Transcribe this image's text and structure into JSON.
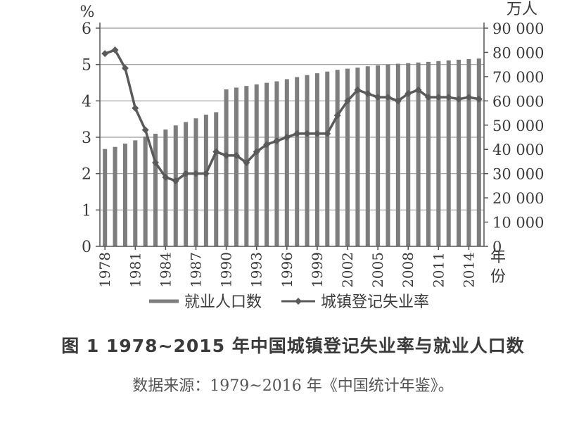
{
  "figure": {
    "title": "图 1 1978~2015 年中国城镇登记失业率与就业人口数",
    "source": "数据来源：1979~2016 年《中国统计年鉴》。"
  },
  "chart_data": {
    "type": "bar+line",
    "x": [
      1978,
      1979,
      1980,
      1981,
      1982,
      1983,
      1984,
      1985,
      1986,
      1987,
      1988,
      1989,
      1990,
      1991,
      1992,
      1993,
      1994,
      1995,
      1996,
      1997,
      1998,
      1999,
      2000,
      2001,
      2002,
      2003,
      2004,
      2005,
      2006,
      2007,
      2008,
      2009,
      2010,
      2011,
      2012,
      2013,
      2014,
      2015
    ],
    "x_tick_labels": [
      "1978",
      "1981",
      "1984",
      "1987",
      "1990",
      "1993",
      "1996",
      "1999",
      "2002",
      "2005",
      "2008",
      "2011",
      "2014"
    ],
    "x_tick_values": [
      1978,
      1981,
      1984,
      1987,
      1990,
      1993,
      1996,
      1999,
      2002,
      2005,
      2008,
      2011,
      2014
    ],
    "xlabel": "年份",
    "left_axis": {
      "unit": "%",
      "ylim": [
        0,
        6
      ],
      "ticks": [
        "0",
        "1",
        "2",
        "3",
        "4",
        "5",
        "6"
      ]
    },
    "right_axis": {
      "unit": "万人",
      "ylim": [
        0,
        90000
      ],
      "ticks": [
        "0",
        "10 000",
        "20 000",
        "30 000",
        "40 000",
        "50 000",
        "60 000",
        "70 000",
        "80 000",
        "90 000"
      ]
    },
    "series": [
      {
        "name": "就业人口数",
        "type": "bar",
        "axis": "right",
        "color": "#7d7d7d",
        "values": [
          40152,
          41024,
          42361,
          43725,
          45295,
          46436,
          48197,
          49873,
          51282,
          52783,
          54334,
          55329,
          64749,
          65491,
          66152,
          66808,
          67455,
          68065,
          68950,
          69820,
          70637,
          71394,
          72085,
          72797,
          73280,
          73736,
          74264,
          74647,
          74978,
          75321,
          75564,
          75828,
          76105,
          76420,
          76704,
          76977,
          77253,
          77451
        ]
      },
      {
        "name": "城镇登记失业率",
        "type": "line",
        "axis": "left",
        "color": "#5a5a5a",
        "values": [
          5.3,
          5.4,
          4.9,
          3.8,
          3.2,
          2.3,
          1.9,
          1.8,
          2.0,
          2.0,
          2.0,
          2.6,
          2.5,
          2.5,
          2.3,
          2.6,
          2.8,
          2.9,
          3.0,
          3.1,
          3.1,
          3.1,
          3.1,
          3.6,
          4.0,
          4.3,
          4.2,
          4.1,
          4.1,
          4.0,
          4.2,
          4.3,
          4.1,
          4.1,
          4.1,
          4.05,
          4.1,
          4.05
        ]
      }
    ],
    "legend": {
      "position": "bottom"
    },
    "grid": true
  }
}
